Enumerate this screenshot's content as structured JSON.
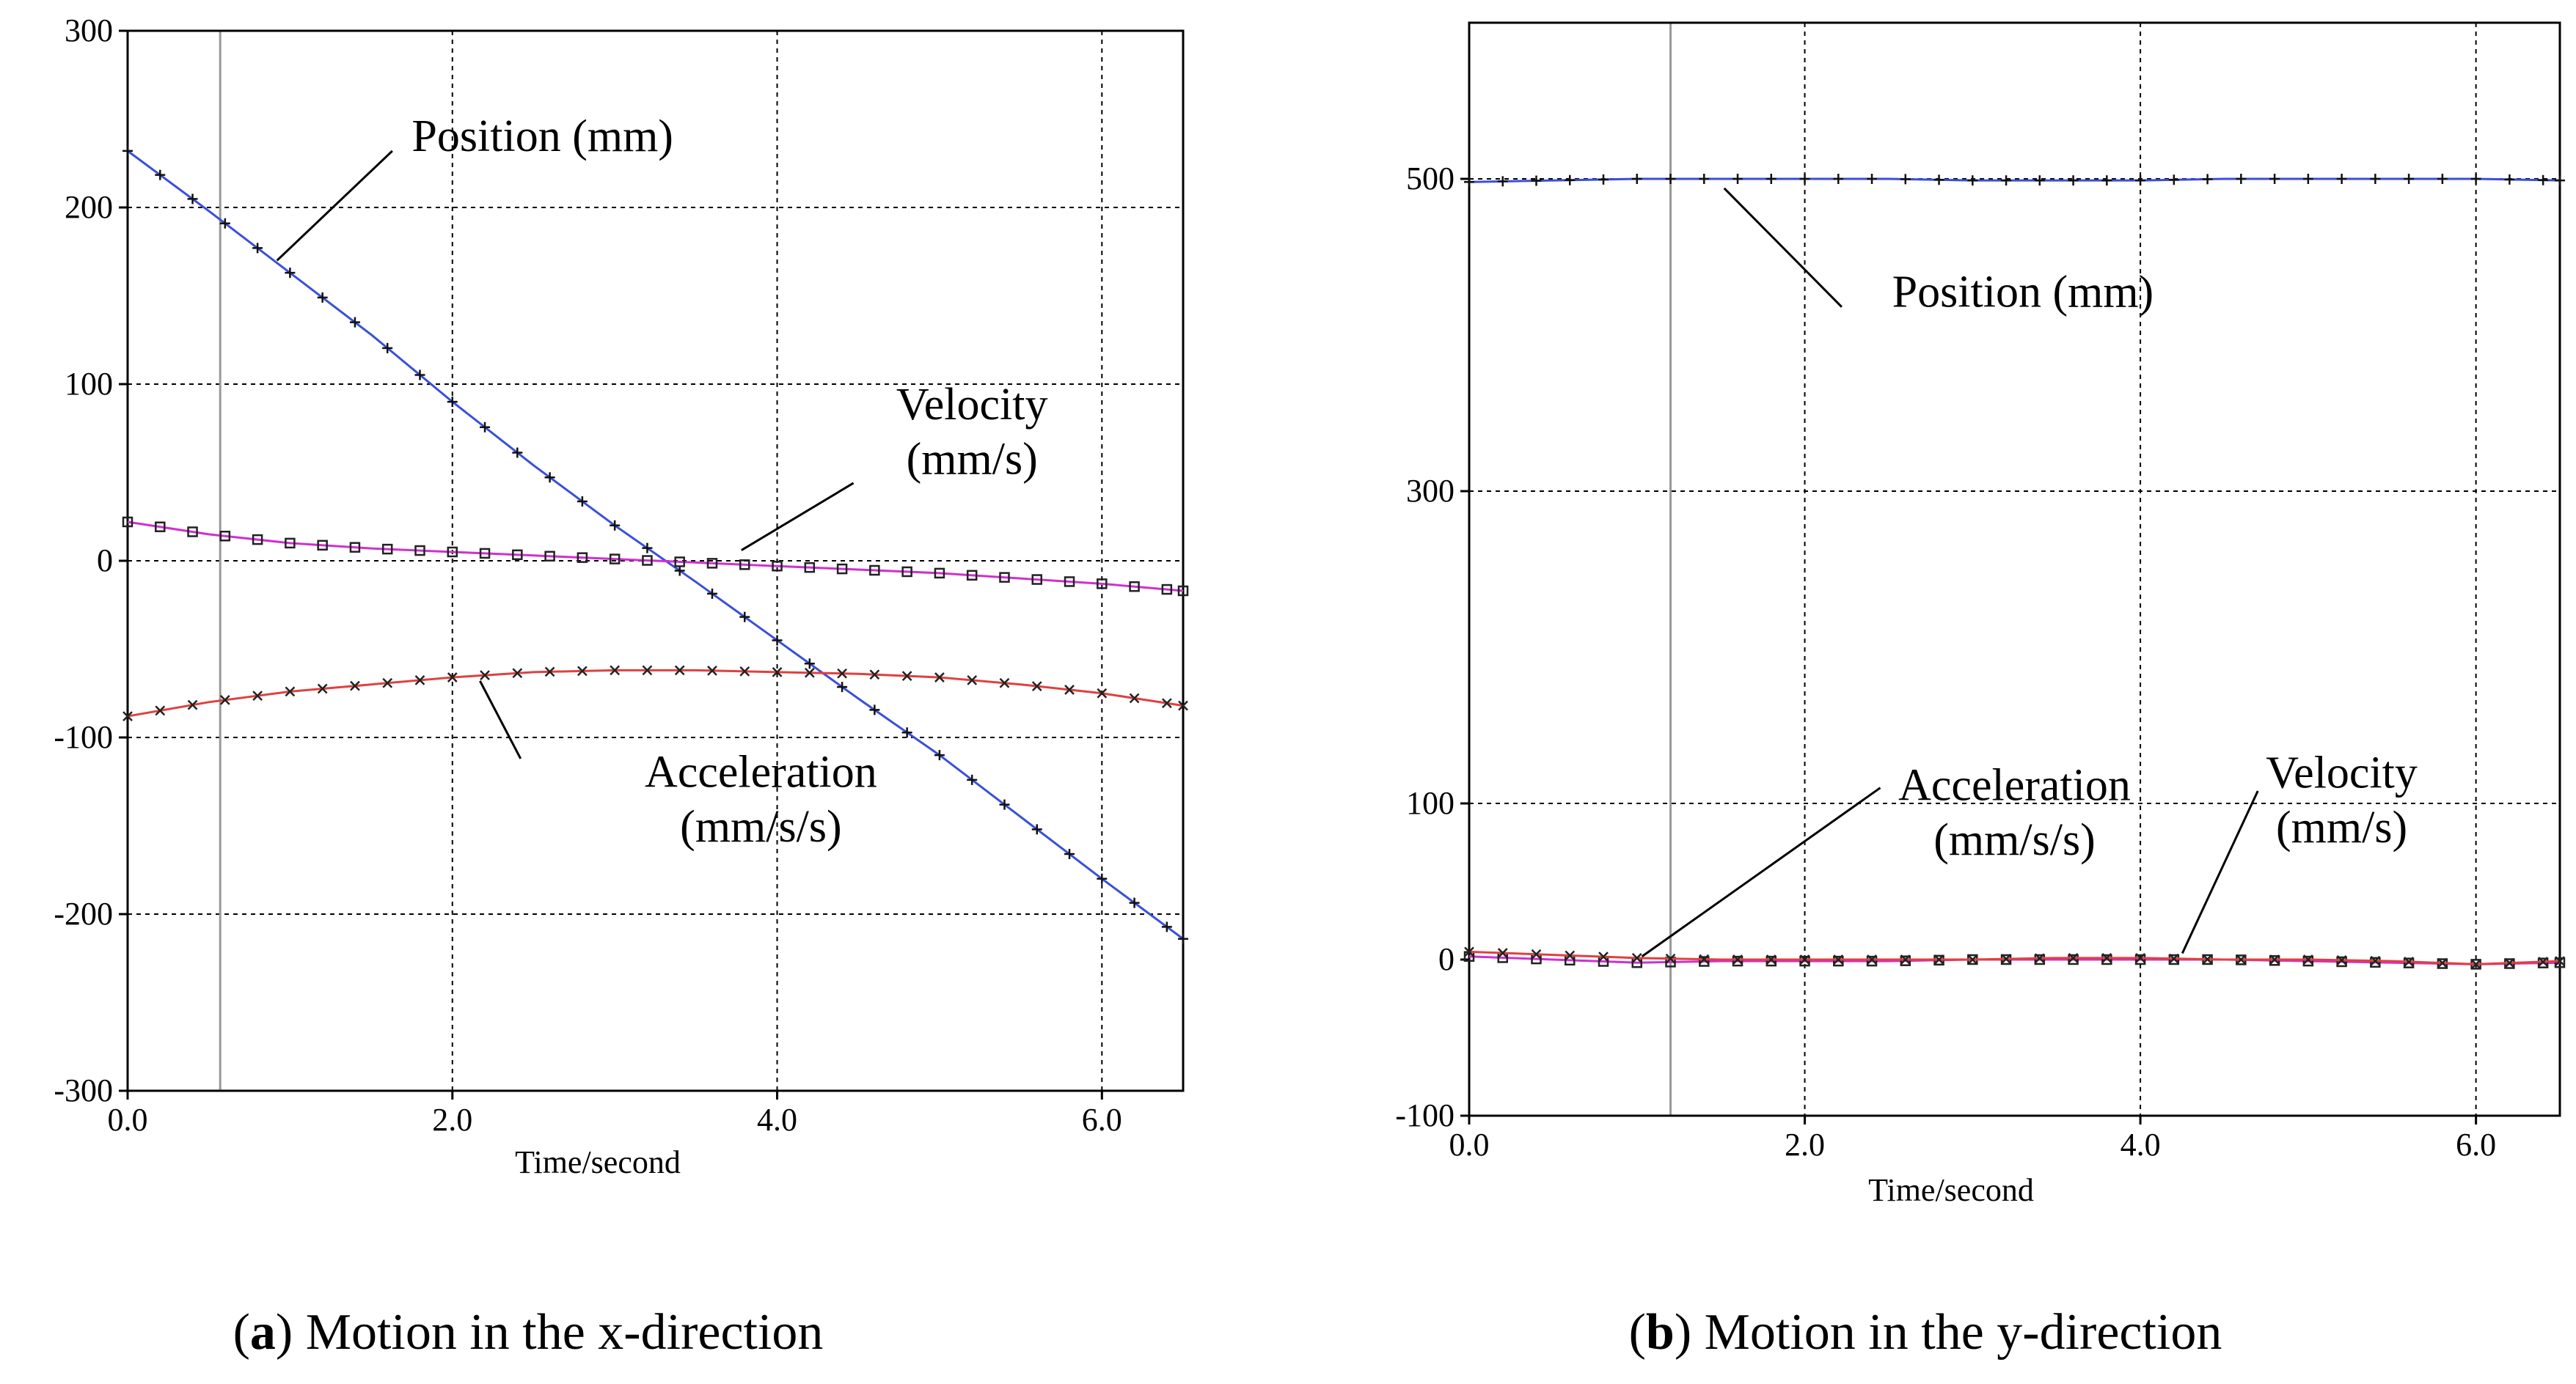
{
  "chart_data": [
    {
      "type": "line",
      "id": "x",
      "caption_letter": "a",
      "caption_text": " Motion in the x-direction",
      "xlabel": "Time/second",
      "ylabel": "",
      "xlim": [
        0,
        6.5
      ],
      "ylim": [
        -300,
        300
      ],
      "x_ticks": [
        0,
        2,
        4,
        6
      ],
      "x_tick_labels": [
        "0.0",
        "2.0",
        "4.0",
        "6.0"
      ],
      "y_ticks": [
        300,
        200,
        100,
        0,
        -100,
        -200,
        -300
      ],
      "y_tick_labels": [
        "300",
        "200",
        "100",
        "0",
        "-100",
        "-200",
        "-300"
      ],
      "x_grid": [
        2,
        4,
        6
      ],
      "y_grid": [
        200,
        100,
        0,
        -100,
        -200
      ],
      "cursor_x": 0.57,
      "series": [
        {
          "name": "Position (mm)",
          "color": "#3b4fd8",
          "marker": "plus",
          "x": [
            0,
            0.5,
            1,
            1.5,
            2,
            2.5,
            3,
            3.5,
            4,
            4.5,
            5,
            5.5,
            6,
            6.5
          ],
          "y": [
            232,
            198,
            163,
            128,
            90,
            54,
            20,
            -12,
            -45,
            -78,
            -110,
            -145,
            -180,
            -214
          ]
        },
        {
          "name": "Velocity (mm/s)",
          "color": "#d030d0",
          "marker": "square",
          "x": [
            0,
            0.5,
            1,
            1.5,
            2,
            2.5,
            3,
            3.5,
            4,
            4.5,
            5,
            5.5,
            6,
            6.5
          ],
          "y": [
            22,
            15,
            10,
            7,
            5,
            3,
            1,
            -1,
            -3,
            -5,
            -7,
            -10,
            -13,
            -17
          ]
        },
        {
          "name": "Acceleration (mm/s/s)",
          "color": "#e04040",
          "marker": "cross",
          "x": [
            0,
            0.5,
            1,
            1.5,
            2,
            2.5,
            3,
            3.5,
            4,
            4.5,
            5,
            5.5,
            6,
            6.5
          ],
          "y": [
            -88,
            -80,
            -74,
            -70,
            -66,
            -63,
            -62,
            -62,
            -63,
            -64,
            -66,
            -70,
            -75,
            -82
          ]
        }
      ],
      "annotations": [
        {
          "lines": [
            "Position (mm)"
          ],
          "text_at": [
            1.75,
            232
          ],
          "anchor": "start",
          "leader_from": [
            1.63,
            232
          ],
          "leader_to": [
            0.92,
            170
          ]
        },
        {
          "lines": [
            "Velocity",
            "(mm/s)"
          ],
          "text_at": [
            5.2,
            80
          ],
          "anchor": "middle",
          "leader_from": [
            4.47,
            44
          ],
          "leader_to": [
            3.78,
            6
          ]
        },
        {
          "lines": [
            "Acceleration",
            "(mm/s/s)"
          ],
          "text_at": [
            3.9,
            -128
          ],
          "anchor": "middle",
          "leader_from": [
            2.42,
            -112
          ],
          "leader_to": [
            2.17,
            -68
          ]
        }
      ]
    },
    {
      "type": "line",
      "id": "y",
      "caption_letter": "b",
      "caption_text": " Motion in the y-direction",
      "xlabel": "Time/second",
      "ylabel": "",
      "xlim": [
        0,
        6.5
      ],
      "ylim": [
        -100,
        600
      ],
      "x_ticks": [
        0,
        2,
        4,
        6
      ],
      "x_tick_labels": [
        "0.0",
        "2.0",
        "4.0",
        "6.0"
      ],
      "y_ticks": [
        500,
        300,
        100,
        0,
        -100
      ],
      "y_tick_labels": [
        "500",
        "300",
        "100",
        "0",
        "-100"
      ],
      "x_grid": [
        2,
        4,
        6
      ],
      "y_grid": [
        500,
        300,
        100
      ],
      "cursor_x": 1.2,
      "series": [
        {
          "name": "Position (mm)",
          "color": "#3b4fd8",
          "marker": "plus",
          "x": [
            0,
            0.5,
            1,
            1.5,
            2,
            2.5,
            3,
            3.5,
            4,
            4.5,
            5,
            5.5,
            6,
            6.5
          ],
          "y": [
            498,
            499,
            500,
            500,
            500,
            500,
            499,
            499,
            499,
            500,
            500,
            500,
            500,
            499
          ]
        },
        {
          "name": "Velocity (mm/s)",
          "color": "#d030d0",
          "marker": "square",
          "x": [
            0,
            0.5,
            1,
            1.5,
            2,
            2.5,
            3,
            3.5,
            4,
            4.5,
            5,
            5.5,
            6,
            6.5
          ],
          "y": [
            2,
            0,
            -2,
            -1,
            -1,
            -1,
            0,
            0,
            0,
            0,
            -1,
            -2,
            -3,
            -2
          ]
        },
        {
          "name": "Acceleration (mm/s/s)",
          "color": "#e04040",
          "marker": "cross",
          "x": [
            0,
            0.5,
            1,
            1.5,
            2,
            2.5,
            3,
            3.5,
            4,
            4.5,
            5,
            5.5,
            6,
            6.5
          ],
          "y": [
            5,
            3,
            1,
            0,
            0,
            0,
            0,
            1,
            1,
            0,
            0,
            -1,
            -3,
            -1
          ]
        }
      ],
      "annotations": [
        {
          "lines": [
            "Position (mm)"
          ],
          "text_at": [
            3.3,
            418
          ],
          "anchor": "middle",
          "leader_from": [
            2.22,
            418
          ],
          "leader_to": [
            1.52,
            494
          ]
        },
        {
          "lines": [
            "Acceleration",
            "(mm/s/s)"
          ],
          "text_at": [
            3.25,
            102
          ],
          "anchor": "middle",
          "leader_from": [
            2.45,
            110
          ],
          "leader_to": [
            1.03,
            2
          ]
        },
        {
          "lines": [
            "Velocity",
            "(mm/s)"
          ],
          "text_at": [
            5.2,
            110
          ],
          "anchor": "middle",
          "leader_from": [
            4.7,
            108
          ],
          "leader_to": [
            4.25,
            4
          ]
        }
      ]
    }
  ]
}
